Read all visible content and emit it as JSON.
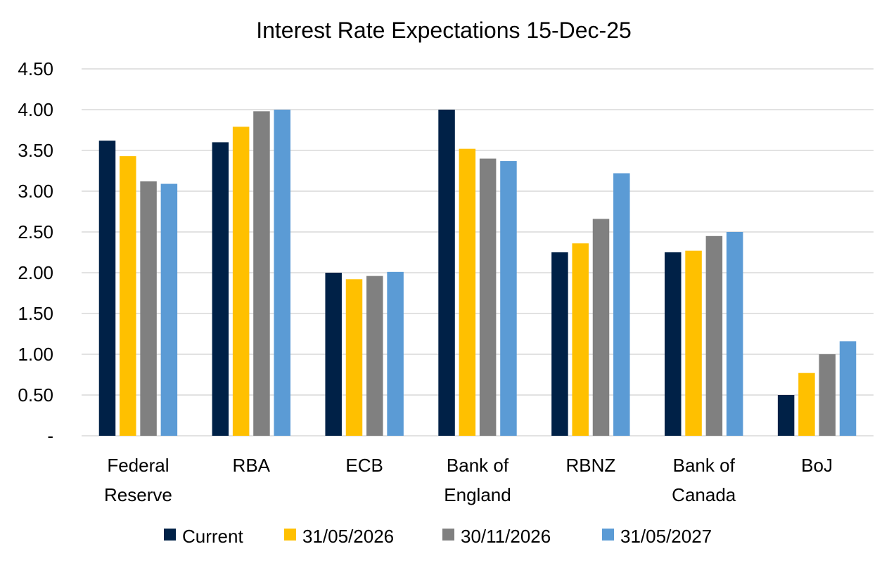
{
  "chart_data": {
    "type": "bar",
    "title": "Interest Rate Expectations 15-Dec-25",
    "xlabel": "",
    "ylabel": "",
    "ylim": [
      0,
      4.5
    ],
    "yticks": [
      0,
      0.5,
      1.0,
      1.5,
      2.0,
      2.5,
      3.0,
      3.5,
      4.0,
      4.5
    ],
    "ytick_labels": [
      "-",
      "0.50",
      "1.00",
      "1.50",
      "2.00",
      "2.50",
      "3.00",
      "3.50",
      "4.00",
      "4.50"
    ],
    "categories": [
      [
        "Federal",
        "Reserve"
      ],
      [
        "RBA"
      ],
      [
        "ECB"
      ],
      [
        "Bank of",
        "England"
      ],
      [
        "RBNZ"
      ],
      [
        "Bank of",
        "Canada"
      ],
      [
        "BoJ"
      ]
    ],
    "series": [
      {
        "name": "Current",
        "color": "#002147",
        "values": [
          3.62,
          3.6,
          2.0,
          4.0,
          2.25,
          2.25,
          0.5
        ]
      },
      {
        "name": "31/05/2026",
        "color": "#FFC000",
        "values": [
          3.43,
          3.79,
          1.92,
          3.52,
          2.36,
          2.27,
          0.77
        ]
      },
      {
        "name": "30/11/2026",
        "color": "#808080",
        "values": [
          3.12,
          3.98,
          1.96,
          3.4,
          2.66,
          2.45,
          1.0
        ]
      },
      {
        "name": "31/05/2027",
        "color": "#5B9BD5",
        "values": [
          3.09,
          4.0,
          2.01,
          3.37,
          3.22,
          2.5,
          1.16
        ]
      }
    ],
    "grid": true,
    "legend": "bottom"
  }
}
